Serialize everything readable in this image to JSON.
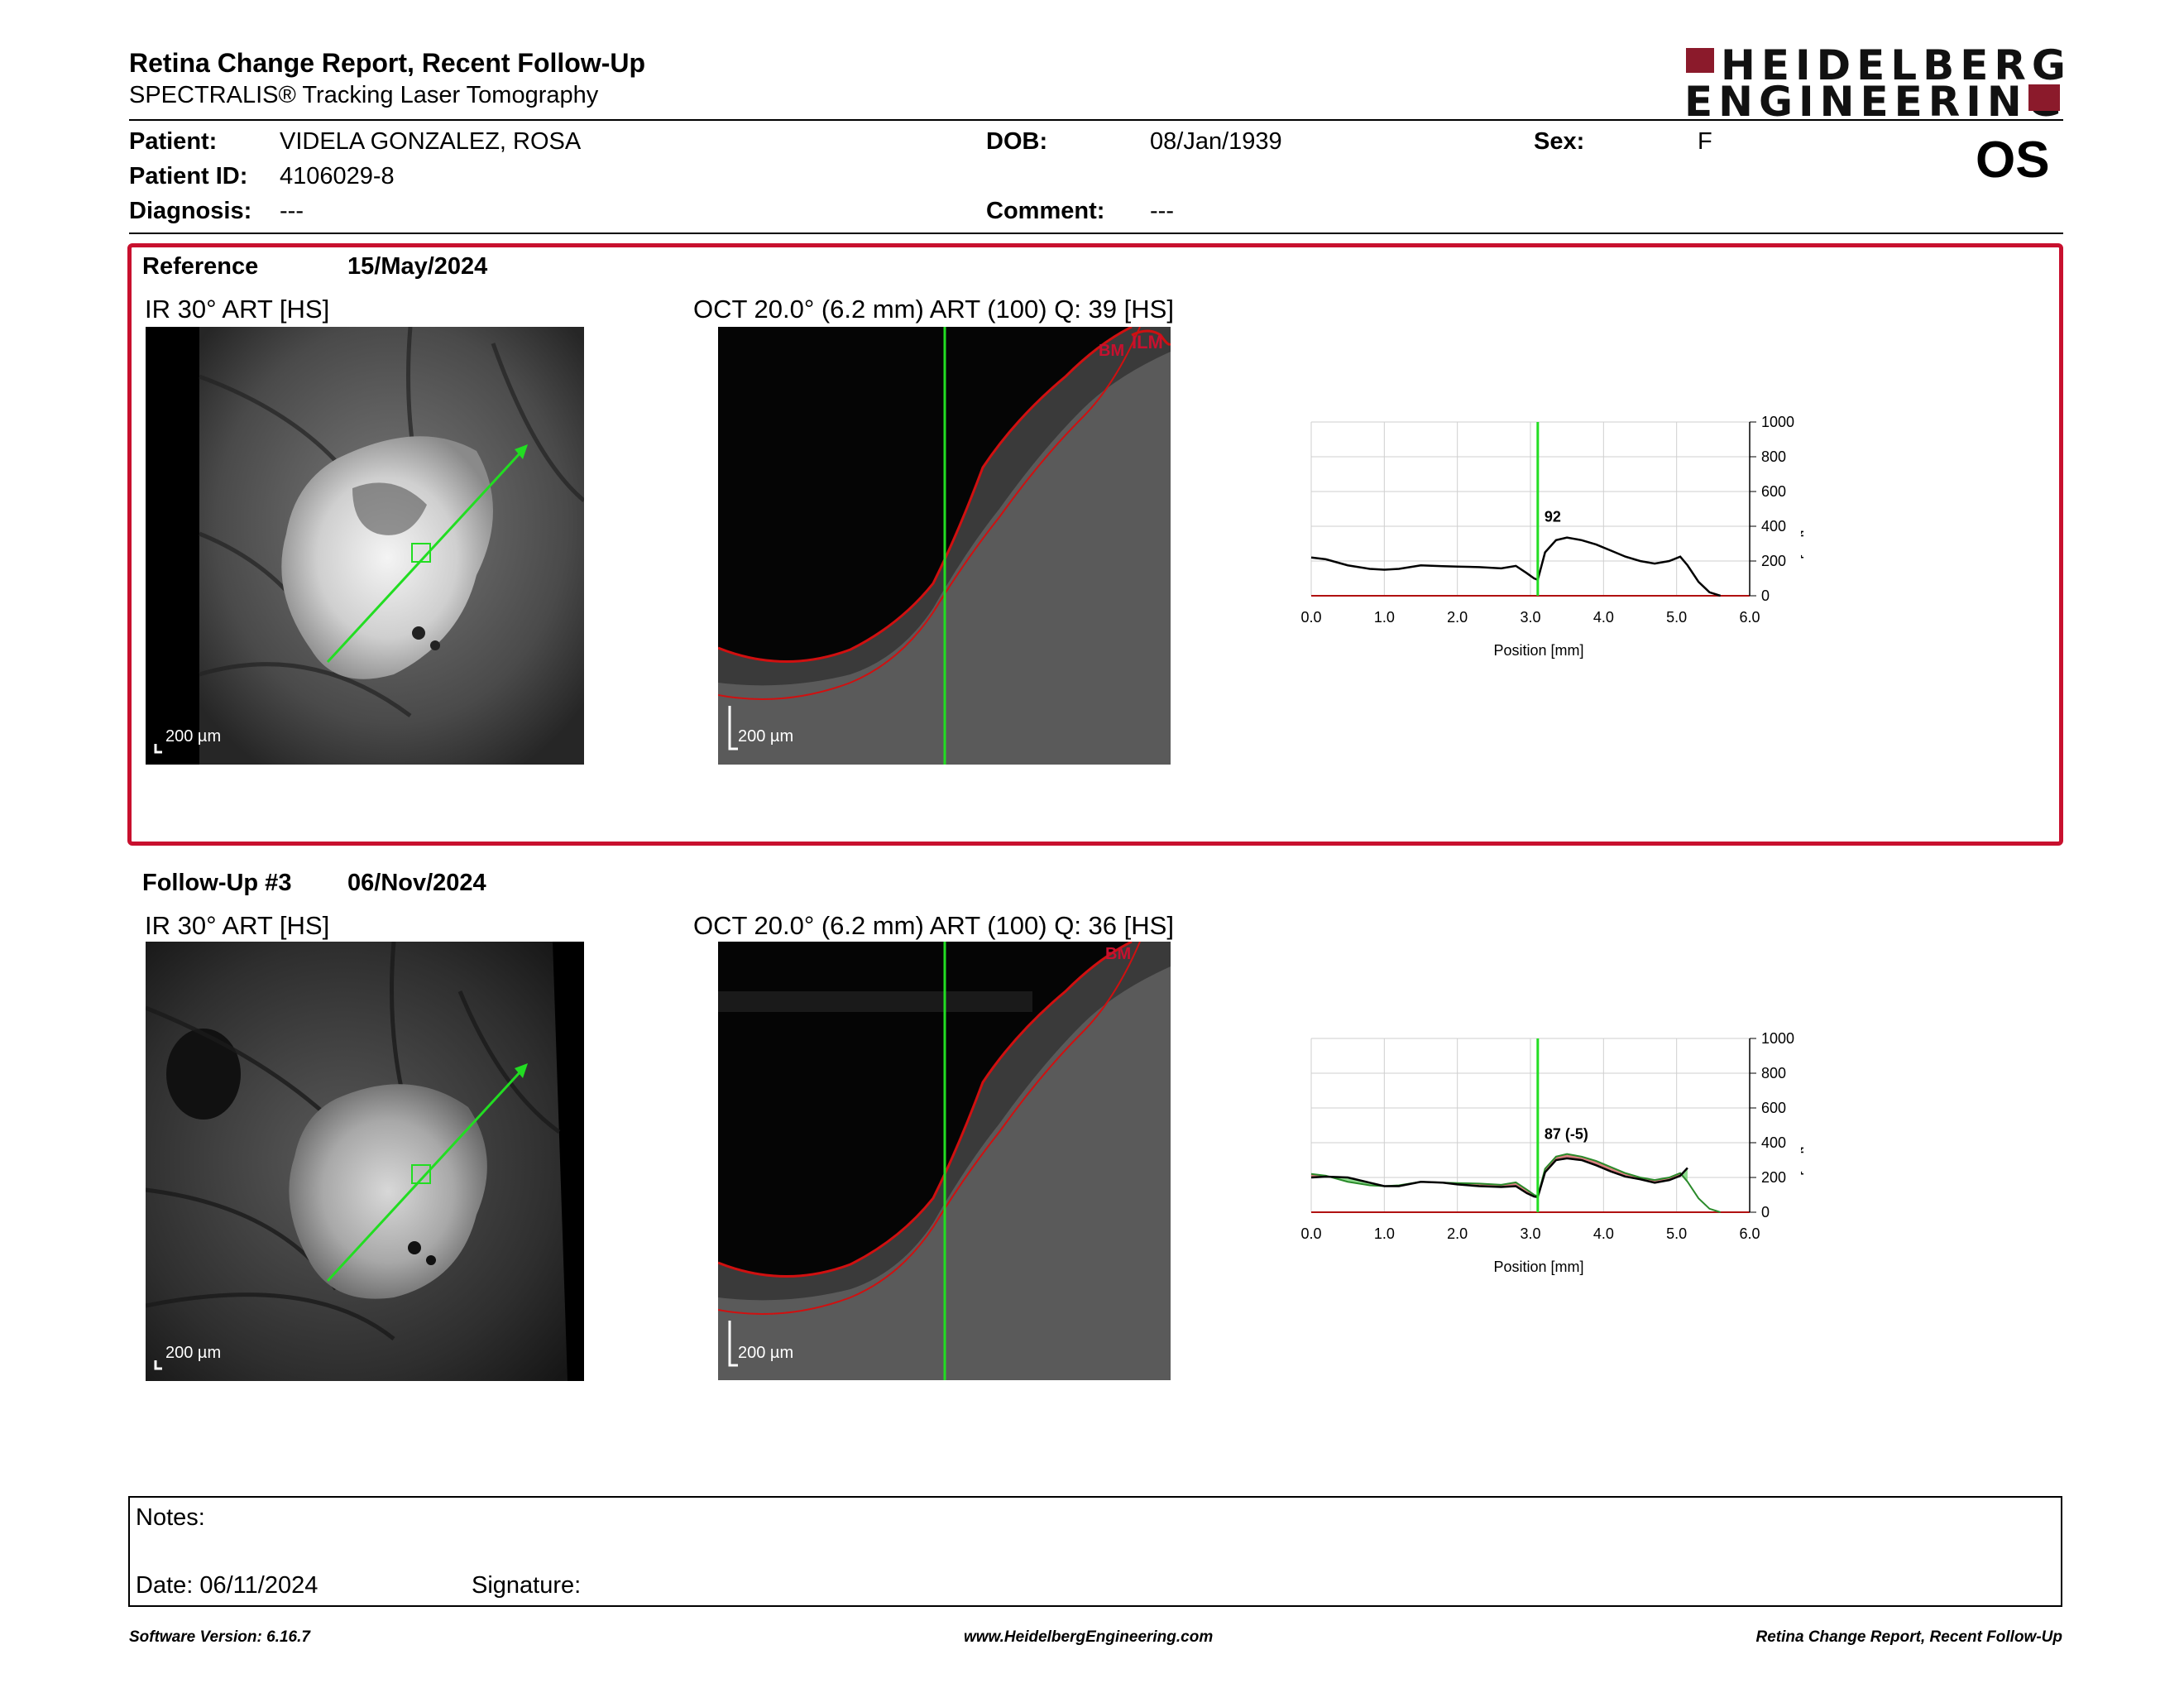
{
  "header": {
    "title": "Retina Change Report, Recent Follow-Up",
    "subtitle": "SPECTRALIS® Tracking Laser Tomography",
    "logo_line1": "HEIDELBERG",
    "logo_line2": "ENGINEERING",
    "eye": "OS"
  },
  "patient": {
    "patient_label": "Patient:",
    "patient_name": "VIDELA GONZALEZ, ROSA",
    "id_label": "Patient ID:",
    "id_value": "4106029-8",
    "diagnosis_label": "Diagnosis:",
    "diagnosis_value": "---",
    "dob_label": "DOB:",
    "dob_value": "08/Jan/1939",
    "comment_label": "Comment:",
    "comment_value": "---",
    "sex_label": "Sex:",
    "sex_value": "F"
  },
  "reference": {
    "label": "Reference",
    "date": "15/May/2024",
    "ir_title": "IR 30° ART [HS]",
    "oct_title": "OCT 20.0° (6.2 mm) ART (100) Q: 39 [HS]",
    "scale": "200 µm",
    "oct_scale": "200 µm",
    "layer_tags": [
      "BM",
      "ILM"
    ]
  },
  "followup": {
    "label": "Follow-Up #3",
    "date": "06/Nov/2024",
    "ir_title": "IR 30° ART [HS]",
    "oct_title": "OCT 20.0° (6.2 mm) ART (100) Q: 36 [HS]",
    "scale": "200 µm",
    "oct_scale": "200 µm",
    "layer_tags": [
      "BM"
    ]
  },
  "notes": {
    "notes_label": "Notes:",
    "date_label": "Date: 06/11/2024",
    "signature_label": "Signature:"
  },
  "footer": {
    "left": "Software Version: 6.16.7",
    "center": "www.HeidelbergEngineering.com",
    "right": "Retina Change Report, Recent Follow-Up"
  },
  "colors": {
    "accent_red": "#c8102e",
    "logo_red": "#8b1a2b",
    "marker_green": "#22dd22",
    "increase_green": "#7ad67a",
    "decrease_red": "#d46a6a"
  },
  "chart_data": [
    {
      "type": "line",
      "name": "reference-thickness",
      "xlabel": "Position [mm]",
      "ylabel": "Thickness [µm]",
      "xlim": [
        0,
        6
      ],
      "ylim": [
        0,
        1000
      ],
      "xticks": [
        "0.0",
        "1.0",
        "2.0",
        "3.0",
        "4.0",
        "5.0",
        "6.0"
      ],
      "yticks": [
        "0",
        "200",
        "400",
        "600",
        "800",
        "1000"
      ],
      "marker_x": 3.1,
      "marker_label": "92",
      "x": [
        0.0,
        0.2,
        0.5,
        0.8,
        1.0,
        1.2,
        1.5,
        1.8,
        2.0,
        2.3,
        2.6,
        2.8,
        2.95,
        3.05,
        3.1,
        3.2,
        3.35,
        3.5,
        3.7,
        3.9,
        4.1,
        4.3,
        4.5,
        4.7,
        4.9,
        5.05,
        5.15,
        5.3,
        5.45,
        5.6
      ],
      "y": [
        220,
        210,
        175,
        155,
        150,
        155,
        175,
        170,
        168,
        165,
        158,
        172,
        130,
        100,
        92,
        250,
        320,
        335,
        320,
        295,
        260,
        225,
        200,
        185,
        200,
        225,
        175,
        80,
        20,
        0
      ]
    },
    {
      "type": "line",
      "name": "followup-thickness",
      "xlabel": "Position [mm]",
      "ylabel": "Thickness [µm]",
      "xlim": [
        0,
        6
      ],
      "ylim": [
        0,
        1000
      ],
      "xticks": [
        "0.0",
        "1.0",
        "2.0",
        "3.0",
        "4.0",
        "5.0",
        "6.0"
      ],
      "yticks": [
        "0",
        "200",
        "400",
        "600",
        "800",
        "1000"
      ],
      "marker_x": 3.1,
      "marker_label": "87 (-5)",
      "x": [
        0.0,
        0.2,
        0.5,
        0.8,
        1.0,
        1.2,
        1.5,
        1.8,
        2.0,
        2.3,
        2.6,
        2.8,
        2.95,
        3.05,
        3.1,
        3.2,
        3.35,
        3.5,
        3.7,
        3.9,
        4.1,
        4.3,
        4.5,
        4.7,
        4.9,
        5.05,
        5.15
      ],
      "y": [
        200,
        205,
        200,
        170,
        150,
        150,
        175,
        170,
        160,
        150,
        145,
        150,
        110,
        90,
        87,
        230,
        300,
        310,
        300,
        270,
        235,
        205,
        190,
        170,
        185,
        210,
        255
      ]
    }
  ]
}
